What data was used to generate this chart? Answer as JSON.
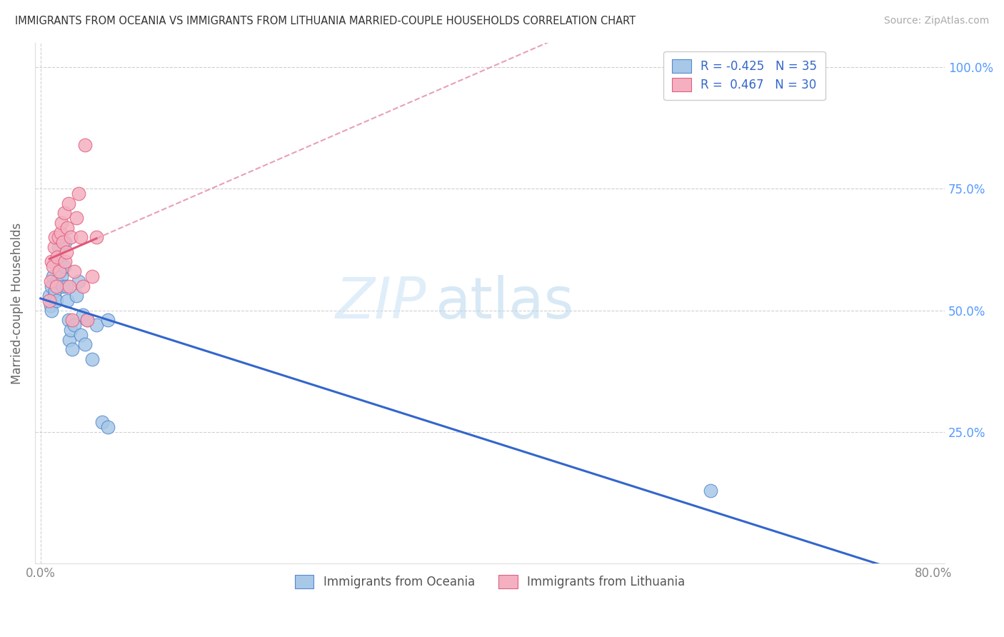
{
  "title": "IMMIGRANTS FROM OCEANIA VS IMMIGRANTS FROM LITHUANIA MARRIED-COUPLE HOUSEHOLDS CORRELATION CHART",
  "source": "Source: ZipAtlas.com",
  "ylabel": "Married-couple Households",
  "r_oceania": -0.425,
  "n_oceania": 35,
  "r_lithuania": 0.467,
  "n_lithuania": 30,
  "color_oceania_fill": "#a8c8e8",
  "color_oceania_edge": "#5588cc",
  "color_lithuania_fill": "#f4b0c0",
  "color_lithuania_edge": "#e06080",
  "color_line_oceania": "#3366cc",
  "color_line_lithuania": "#e05878",
  "color_line_lithuania_dashed": "#e8a0b8",
  "background_color": "#ffffff",
  "watermark_zip": "ZIP",
  "watermark_atlas": "atlas",
  "xmin": 0.0,
  "xmax": 0.8,
  "ymin": 0.0,
  "ymax": 1.05,
  "ytick_vals": [
    0.0,
    0.25,
    0.5,
    0.75,
    1.0
  ],
  "ytick_labels": [
    "",
    "25.0%",
    "50.0%",
    "75.0%",
    "100.0%"
  ],
  "xtick_vals": [
    0.0,
    0.8
  ],
  "xtick_labels": [
    "0.0%",
    "80.0%"
  ],
  "oceania_x": [
    0.008,
    0.009,
    0.01,
    0.01,
    0.011,
    0.012,
    0.013,
    0.014,
    0.015,
    0.016,
    0.017,
    0.018,
    0.019,
    0.02,
    0.021,
    0.022,
    0.023,
    0.024,
    0.025,
    0.026,
    0.027,
    0.028,
    0.03,
    0.032,
    0.034,
    0.036,
    0.038,
    0.04,
    0.042,
    0.046,
    0.05,
    0.055,
    0.06,
    0.06,
    0.6
  ],
  "oceania_y": [
    0.53,
    0.51,
    0.55,
    0.5,
    0.57,
    0.53,
    0.54,
    0.52,
    0.56,
    0.63,
    0.6,
    0.58,
    0.57,
    0.55,
    0.59,
    0.64,
    0.55,
    0.52,
    0.48,
    0.44,
    0.46,
    0.42,
    0.47,
    0.53,
    0.56,
    0.45,
    0.49,
    0.43,
    0.48,
    0.4,
    0.47,
    0.27,
    0.48,
    0.26,
    0.13
  ],
  "lithuania_x": [
    0.008,
    0.009,
    0.01,
    0.011,
    0.012,
    0.013,
    0.014,
    0.015,
    0.016,
    0.017,
    0.018,
    0.019,
    0.02,
    0.021,
    0.022,
    0.023,
    0.024,
    0.025,
    0.026,
    0.027,
    0.028,
    0.03,
    0.032,
    0.034,
    0.036,
    0.038,
    0.04,
    0.042,
    0.046,
    0.05
  ],
  "lithuania_y": [
    0.52,
    0.56,
    0.6,
    0.59,
    0.63,
    0.65,
    0.55,
    0.61,
    0.65,
    0.58,
    0.66,
    0.68,
    0.64,
    0.7,
    0.6,
    0.62,
    0.67,
    0.72,
    0.55,
    0.65,
    0.48,
    0.58,
    0.69,
    0.74,
    0.65,
    0.55,
    0.84,
    0.48,
    0.57,
    0.65
  ]
}
